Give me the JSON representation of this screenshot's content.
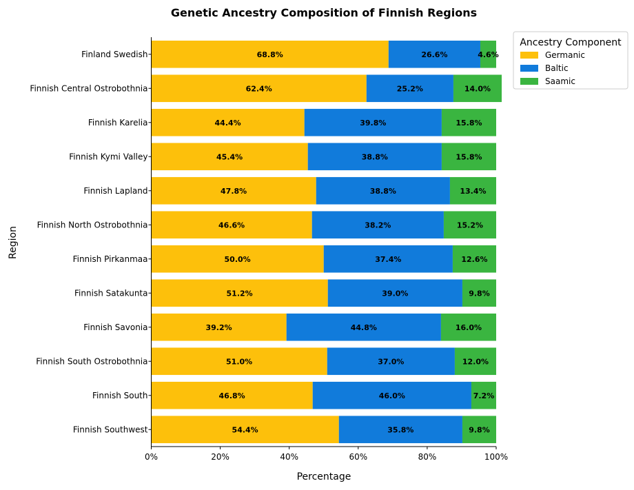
{
  "chart_data": {
    "type": "bar",
    "orientation": "horizontal",
    "stacked": true,
    "title": "Genetic Ancestry Composition of Finnish Regions",
    "xlabel": "Percentage",
    "ylabel": "Region",
    "xlim": [
      0,
      100
    ],
    "xticks": [
      "0%",
      "20%",
      "40%",
      "60%",
      "80%",
      "100%"
    ],
    "xtick_values": [
      0,
      20,
      40,
      60,
      80,
      100
    ],
    "categories": [
      "Finland Swedish",
      "Finnish Central Ostrobothnia",
      "Finnish Karelia",
      "Finnish Kymi Valley",
      "Finnish Lapland",
      "Finnish North Ostrobothnia",
      "Finnish Pirkanmaa",
      "Finnish Satakunta",
      "Finnish Savonia",
      "Finnish South Ostrobothnia",
      "Finnish South",
      "Finnish Southwest"
    ],
    "series": [
      {
        "name": "Germanic",
        "color": "#FDC00B",
        "values": [
          68.8,
          62.4,
          44.4,
          45.4,
          47.8,
          46.6,
          50.0,
          51.2,
          39.2,
          51.0,
          46.8,
          54.4
        ]
      },
      {
        "name": "Baltic",
        "color": "#117BDB",
        "values": [
          26.6,
          25.2,
          39.8,
          38.8,
          38.8,
          38.2,
          37.4,
          39.0,
          44.8,
          37.0,
          46.0,
          35.8
        ]
      },
      {
        "name": "Saamic",
        "color": "#3AB540",
        "values": [
          4.6,
          14.0,
          15.8,
          15.8,
          13.4,
          15.2,
          12.6,
          9.8,
          16.0,
          12.0,
          7.2,
          9.8
        ]
      }
    ],
    "legend": {
      "title": "Ancestry Component",
      "placement": "outside-top-right"
    },
    "grid": false
  }
}
